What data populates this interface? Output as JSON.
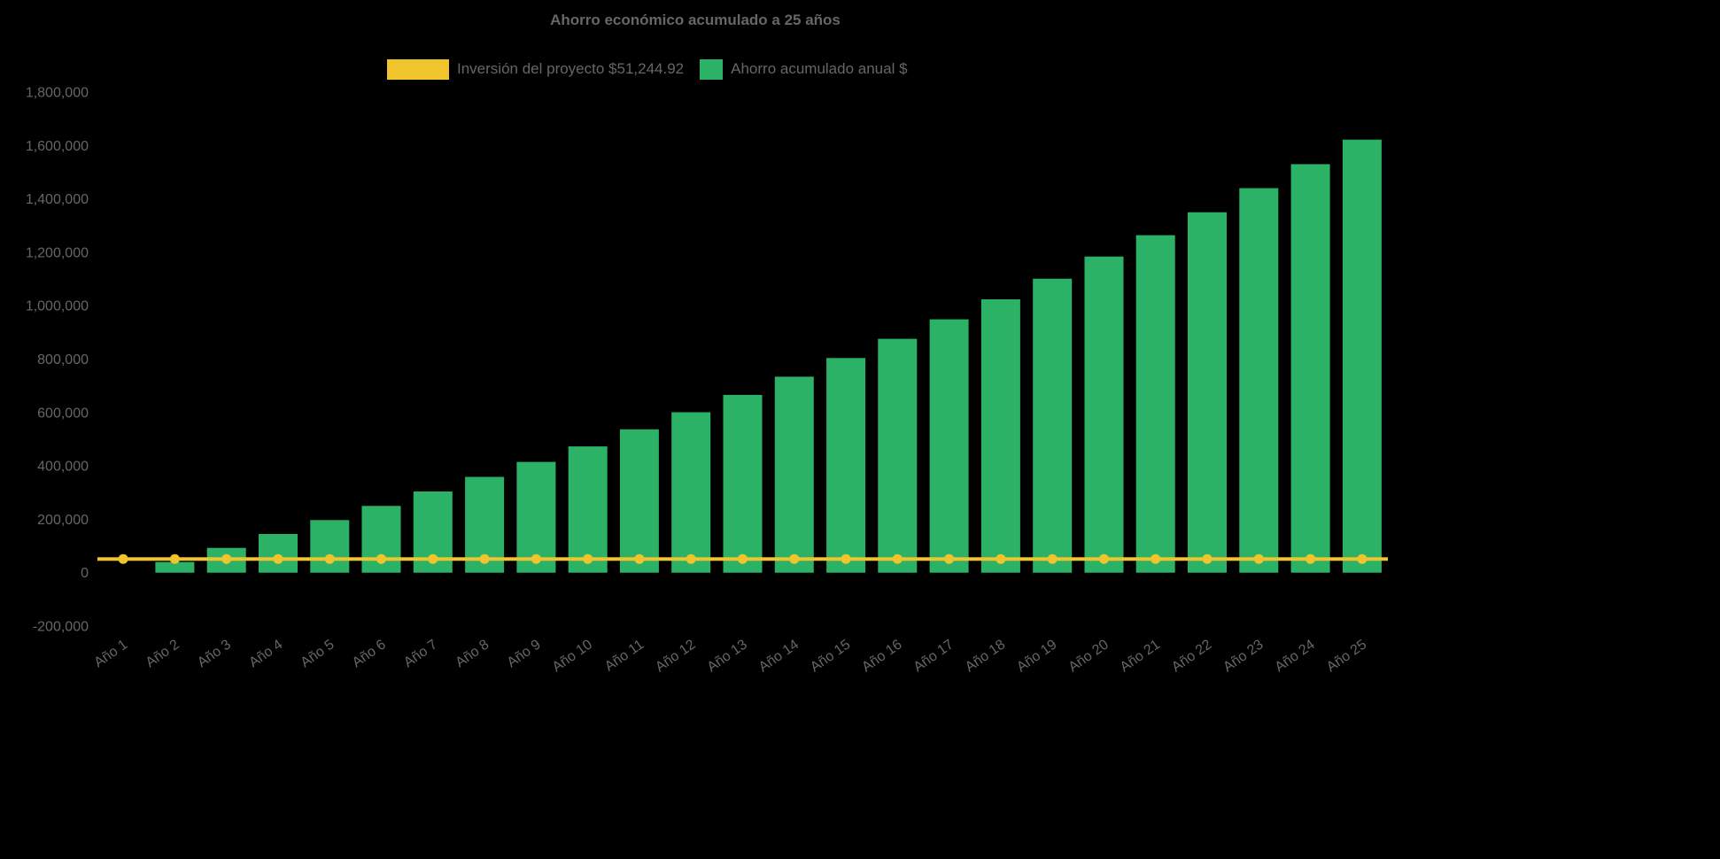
{
  "colors": {
    "background": "#000000",
    "text": "#666666",
    "investment_yellow": "#EFC42D",
    "savings_green": "#2BB266"
  },
  "legend": {
    "items": [
      {
        "label": "Inversión del proyecto $51,244.92",
        "color": "#EFC42D",
        "shape": "line"
      },
      {
        "label": "Ahorro acumulado anual $",
        "color": "#2BB266",
        "shape": "bar"
      }
    ]
  },
  "chart_data": {
    "type": "bar",
    "title": "Ahorro económico acumulado a 25 años",
    "categories": [
      "Año 1",
      "Año 2",
      "Año 3",
      "Año 4",
      "Año 5",
      "Año 6",
      "Año 7",
      "Año 8",
      "Año 9",
      "Año 10",
      "Año 11",
      "Año 12",
      "Año 13",
      "Año 14",
      "Año 15",
      "Año 16",
      "Año 17",
      "Año 18",
      "Año 19",
      "Año 20",
      "Año 21",
      "Año 22",
      "Año 23",
      "Año 24",
      "Año 25"
    ],
    "series": [
      {
        "name": "Inversión del proyecto $51,244.92",
        "type": "line",
        "color": "#EFC42D",
        "constant_value": 51244.92
      },
      {
        "name": "Ahorro acumulado anual $",
        "type": "bar",
        "color": "#2BB266",
        "values": [
          0,
          40000,
          93000,
          145000,
          197000,
          250000,
          304000,
          359000,
          415000,
          473000,
          537000,
          601000,
          666000,
          734000,
          804000,
          876000,
          949000,
          1024000,
          1101000,
          1184000,
          1264000,
          1350000,
          1440000,
          1530000,
          1622000
        ]
      }
    ],
    "xlabel": "",
    "ylabel": "",
    "ylim": [
      -200000,
      1800000
    ],
    "yticks": [
      -200000,
      0,
      200000,
      400000,
      600000,
      800000,
      1000000,
      1200000,
      1400000,
      1600000,
      1800000
    ],
    "grid": false,
    "legend_position": "top",
    "x_label_rotation": -35
  }
}
